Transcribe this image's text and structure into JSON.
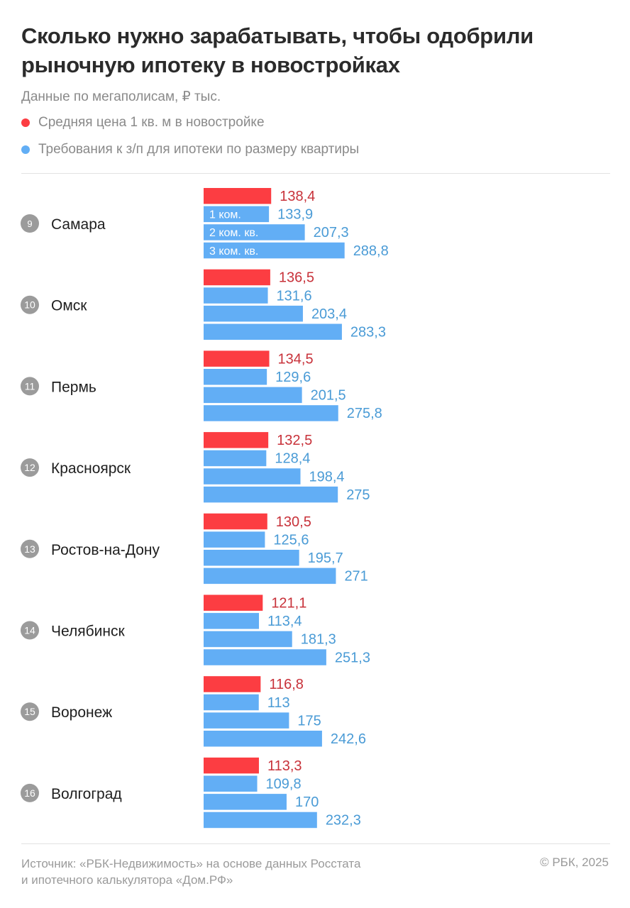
{
  "title": "Сколько нужно зарабатывать, чтобы одобрили рыночную ипотеку в новостройках",
  "subtitle": "Данные по мегаполисам, ₽ тыс.",
  "legend": [
    {
      "label": "Средняя цена 1 кв. м в новостройке",
      "color": "#fc3d42"
    },
    {
      "label": "Требования к з/п для ипотеки по размеру квартиры",
      "color": "#62aef5"
    }
  ],
  "footer": {
    "source_line1": "Источник: «РБК-Недвижимость» на основе данных Росстата",
    "source_line2": "и ипотечного калькулятора «Дом.РФ»",
    "copyright": "© РБК, 2025"
  },
  "chart_data": {
    "type": "bar",
    "orientation": "horizontal",
    "title": "Сколько нужно зарабатывать, чтобы одобрили рыночную ипотеку в новостройках",
    "unit": "₽ тыс.",
    "bar_labels": [
      "",
      "1 ком.",
      "2 ком. кв.",
      "3 ком. кв."
    ],
    "series": [
      {
        "name": "Средняя цена 1 кв. м в новостройке",
        "color": "#fc3d42",
        "text_color": "#c8323a"
      },
      {
        "name": "1 ком.",
        "color": "#62aef5",
        "text_color": "#4a9bd6"
      },
      {
        "name": "2 ком. кв.",
        "color": "#62aef5",
        "text_color": "#4a9bd6"
      },
      {
        "name": "3 ком. кв.",
        "color": "#62aef5",
        "text_color": "#4a9bd6"
      }
    ],
    "categories": [
      {
        "rank": "9",
        "city": "Самара",
        "values": [
          138.4,
          133.9,
          207.3,
          288.8
        ],
        "labels": [
          "138,4",
          "133,9",
          "207,3",
          "288,8"
        ]
      },
      {
        "rank": "10",
        "city": "Омск",
        "values": [
          136.5,
          131.6,
          203.4,
          283.3
        ],
        "labels": [
          "136,5",
          "131,6",
          "203,4",
          "283,3"
        ]
      },
      {
        "rank": "11",
        "city": "Пермь",
        "values": [
          134.5,
          129.6,
          201.5,
          275.8
        ],
        "labels": [
          "134,5",
          "129,6",
          "201,5",
          "275,8"
        ]
      },
      {
        "rank": "12",
        "city": "Красноярск",
        "values": [
          132.5,
          128.4,
          198.4,
          275
        ],
        "labels": [
          "132,5",
          "128,4",
          "198,4",
          "275"
        ]
      },
      {
        "rank": "13",
        "city": "Ростов-на-Дону",
        "values": [
          130.5,
          125.6,
          195.7,
          271
        ],
        "labels": [
          "130,5",
          "125,6",
          "195,7",
          "271"
        ]
      },
      {
        "rank": "14",
        "city": "Челябинск",
        "values": [
          121.1,
          113.4,
          181.3,
          251.3
        ],
        "labels": [
          "121,1",
          "113,4",
          "181,3",
          "251,3"
        ]
      },
      {
        "rank": "15",
        "city": "Воронеж",
        "values": [
          116.8,
          113,
          175,
          242.6
        ],
        "labels": [
          "116,8",
          "113",
          "175",
          "242,6"
        ]
      },
      {
        "rank": "16",
        "city": "Волгоград",
        "values": [
          113.3,
          109.8,
          170,
          232.3
        ],
        "labels": [
          "113,3",
          "109,8",
          "170",
          "232,3"
        ]
      }
    ]
  }
}
